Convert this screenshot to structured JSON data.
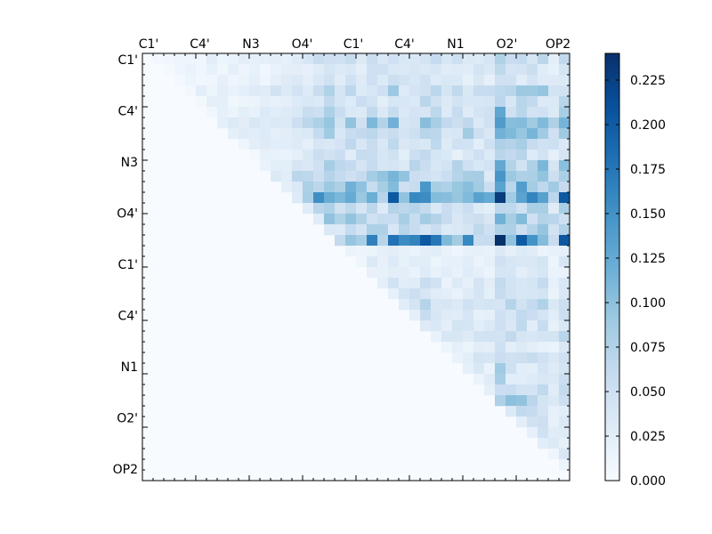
{
  "chart_data": {
    "type": "heatmap",
    "title": "",
    "xlabel": "",
    "ylabel": "",
    "x_ticklabels": [
      "C1'",
      "C4'",
      "N3",
      "O4'",
      "C1'",
      "C4'",
      "N1",
      "O2'",
      "OP2"
    ],
    "y_ticklabels": [
      "C1'",
      "C4'",
      "N3",
      "O4'",
      "C1'",
      "C4'",
      "N1",
      "O2'",
      "OP2"
    ],
    "grid_size": 40,
    "upper_triangle_only": true,
    "colormap": "Blues",
    "colors": {
      "low": "#f7fbff",
      "mid": "#6baed6",
      "high": "#08306b"
    },
    "colorbar": {
      "vmin": 0.0,
      "vmax": 0.24,
      "ticks": [
        0.0,
        0.025,
        0.05,
        0.075,
        0.1,
        0.125,
        0.15,
        0.175,
        0.2,
        0.225
      ],
      "ticklabels": [
        "0.000",
        "0.025",
        "0.050",
        "0.075",
        "0.100",
        "0.125",
        "0.150",
        "0.175",
        "0.200",
        "0.225"
      ]
    },
    "row_weights": [
      0.35,
      0.3,
      0.3,
      0.45,
      0.35,
      0.45,
      0.6,
      0.55,
      0.4,
      0.35,
      0.5,
      0.6,
      0.7,
      1.0,
      0.45,
      0.55,
      0.45,
      1.0,
      0.15,
      0.2,
      0.2,
      0.3,
      0.3,
      0.35,
      0.3,
      0.3,
      0.35,
      0.2,
      0.3,
      0.3,
      0.3,
      0.35,
      0.5,
      0.3,
      0.35,
      0.3,
      0.25,
      0.2,
      0.15,
      0.1
    ],
    "col_weights": [
      0.2,
      0.2,
      0.2,
      0.2,
      0.2,
      0.2,
      0.25,
      0.25,
      0.25,
      0.25,
      0.25,
      0.25,
      0.35,
      0.35,
      0.4,
      0.5,
      0.55,
      0.6,
      0.55,
      0.6,
      0.6,
      0.65,
      0.6,
      0.7,
      0.55,
      0.6,
      0.7,
      0.6,
      0.45,
      0.5,
      0.55,
      0.5,
      0.45,
      1.0,
      0.7,
      0.75,
      0.7,
      0.75,
      0.45,
      0.7
    ],
    "value_scale": 0.24
  }
}
